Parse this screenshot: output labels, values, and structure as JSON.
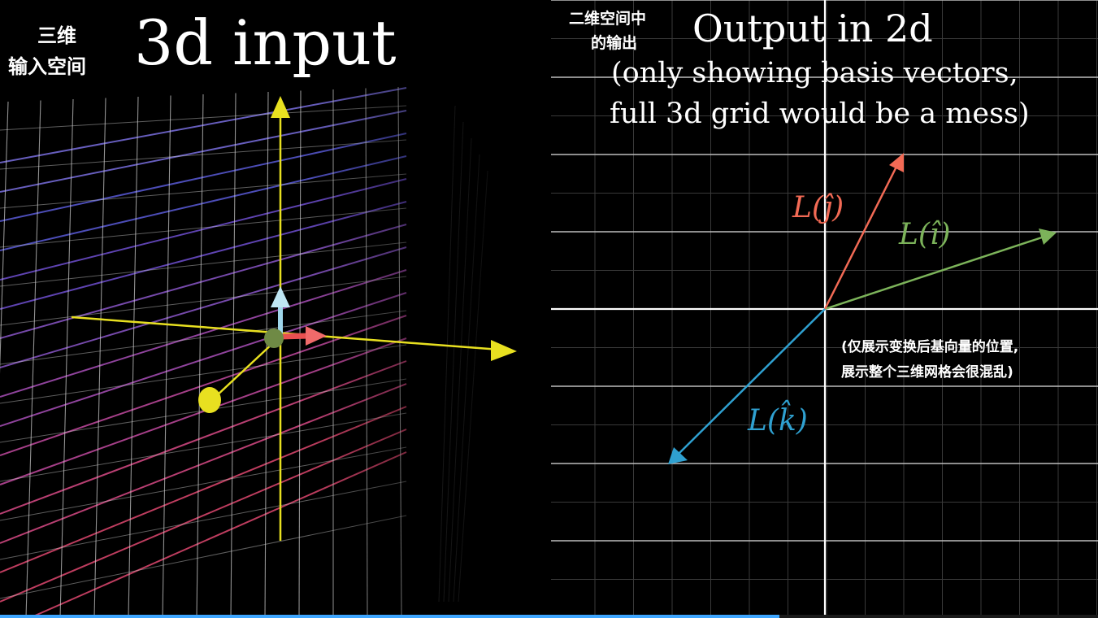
{
  "left_panel": {
    "cn_title_line1": "三维",
    "cn_title_line2": "输入空间",
    "title": "3d input"
  },
  "right_panel": {
    "cn_title_line1": "二维空间中",
    "cn_title_line2": "的输出",
    "title": "Output in 2d",
    "subtitle_line1": "(only showing basis vectors,",
    "subtitle_line2": "full 3d grid would be a mess)",
    "cn_note_line1": "(仅展示变换后基向量的位置,",
    "cn_note_line2": "展示整个三维网格会很混乱)",
    "vector_labels": {
      "i": "L(î)",
      "j": "L(ĵ)",
      "k": "L(k̂)"
    }
  },
  "colors": {
    "i_vector": "#7cb35a",
    "j_vector": "#f26a55",
    "k_vector": "#2fa0d0",
    "axis": "#e8e020",
    "grid": "#d9d9d9",
    "progress": "#3ea6ff"
  },
  "video_progress": 0.71
}
